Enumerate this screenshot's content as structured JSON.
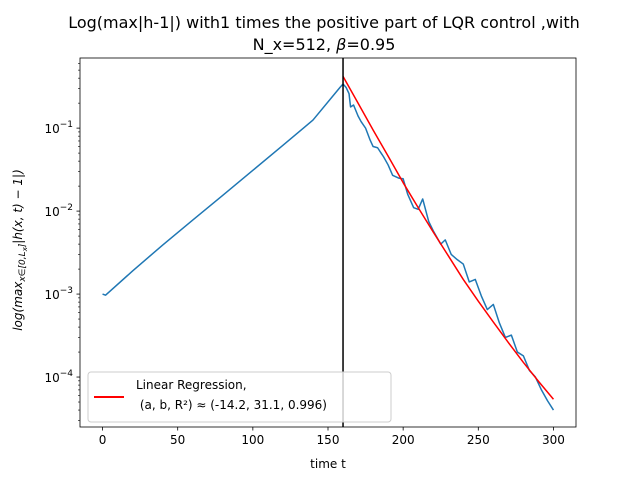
{
  "chart_data": {
    "type": "line",
    "title": "Log(max|h-1|) with1 times the positive part of LQR control ,with",
    "subtitle": "N_x=512, β=0.95",
    "subtitle_parts": {
      "prefix": "N_x=512, ",
      "symbol": "β",
      "suffix": "=0.95"
    },
    "xlabel": "time t",
    "ylabel_parts": {
      "pre": "log(max",
      "sub": "x∈[0,L",
      "subsub": "x",
      "sub_close": "]",
      "post": "|h(x, t) − 1|)"
    },
    "xlim": [
      -15,
      315
    ],
    "ylim": [
      2.5e-05,
      0.7
    ],
    "yscale": "log",
    "grid": false,
    "x_ticks": [
      0,
      50,
      100,
      150,
      200,
      250,
      300
    ],
    "x_tick_labels": [
      "0",
      "50",
      "100",
      "150",
      "200",
      "250",
      "300"
    ],
    "y_ticks": [
      0.0001,
      0.001,
      0.01,
      0.1
    ],
    "y_tick_labels": [
      {
        "base": "10",
        "exp": "−4"
      },
      {
        "base": "10",
        "exp": "−3"
      },
      {
        "base": "10",
        "exp": "−2"
      },
      {
        "base": "10",
        "exp": "−1"
      }
    ],
    "vline": {
      "x": 160,
      "color": "#000000"
    },
    "legend": {
      "position": "lower-left",
      "line1": "Linear Regression,",
      "line2": " (a, b, R²) ≈ (-14.2, 31.1, 0.996)"
    },
    "series": [
      {
        "color": "#1f77b4",
        "x": [
          0,
          2,
          20,
          40,
          60,
          80,
          100,
          120,
          140,
          158,
          160,
          162,
          164,
          165,
          167,
          170,
          172,
          175,
          178,
          180,
          183,
          187,
          190,
          193,
          197,
          200,
          203,
          207,
          210,
          213,
          217,
          220,
          225,
          228,
          232,
          236,
          240,
          244,
          248,
          252,
          256,
          260,
          264,
          268,
          272,
          276,
          280,
          284,
          288,
          292,
          296,
          300
        ],
        "y": [
          0.001,
          0.00097,
          0.0019,
          0.0039,
          0.0078,
          0.0155,
          0.031,
          0.062,
          0.125,
          0.31,
          0.34,
          0.31,
          0.26,
          0.18,
          0.19,
          0.14,
          0.12,
          0.1,
          0.072,
          0.06,
          0.058,
          0.045,
          0.036,
          0.027,
          0.025,
          0.0245,
          0.016,
          0.011,
          0.0105,
          0.014,
          0.0075,
          0.0058,
          0.004,
          0.0045,
          0.003,
          0.0026,
          0.0023,
          0.0014,
          0.0015,
          0.00095,
          0.00065,
          0.00075,
          0.00045,
          0.0003,
          0.00032,
          0.0002,
          0.00018,
          0.00012,
          0.0001,
          7e-05,
          5.2e-05,
          4e-05
        ]
      },
      {
        "name": "Linear Regression,",
        "color": "#ff0000",
        "x": [
          160,
          170,
          180,
          190,
          200,
          210,
          220,
          230,
          240,
          250,
          260,
          270,
          280,
          290,
          300
        ],
        "y": [
          0.42,
          0.2,
          0.095,
          0.046,
          0.022,
          0.011,
          0.0056,
          0.0029,
          0.0015,
          0.00082,
          0.00046,
          0.00026,
          0.00015,
          8.9e-05,
          5.4e-05
        ]
      }
    ]
  }
}
